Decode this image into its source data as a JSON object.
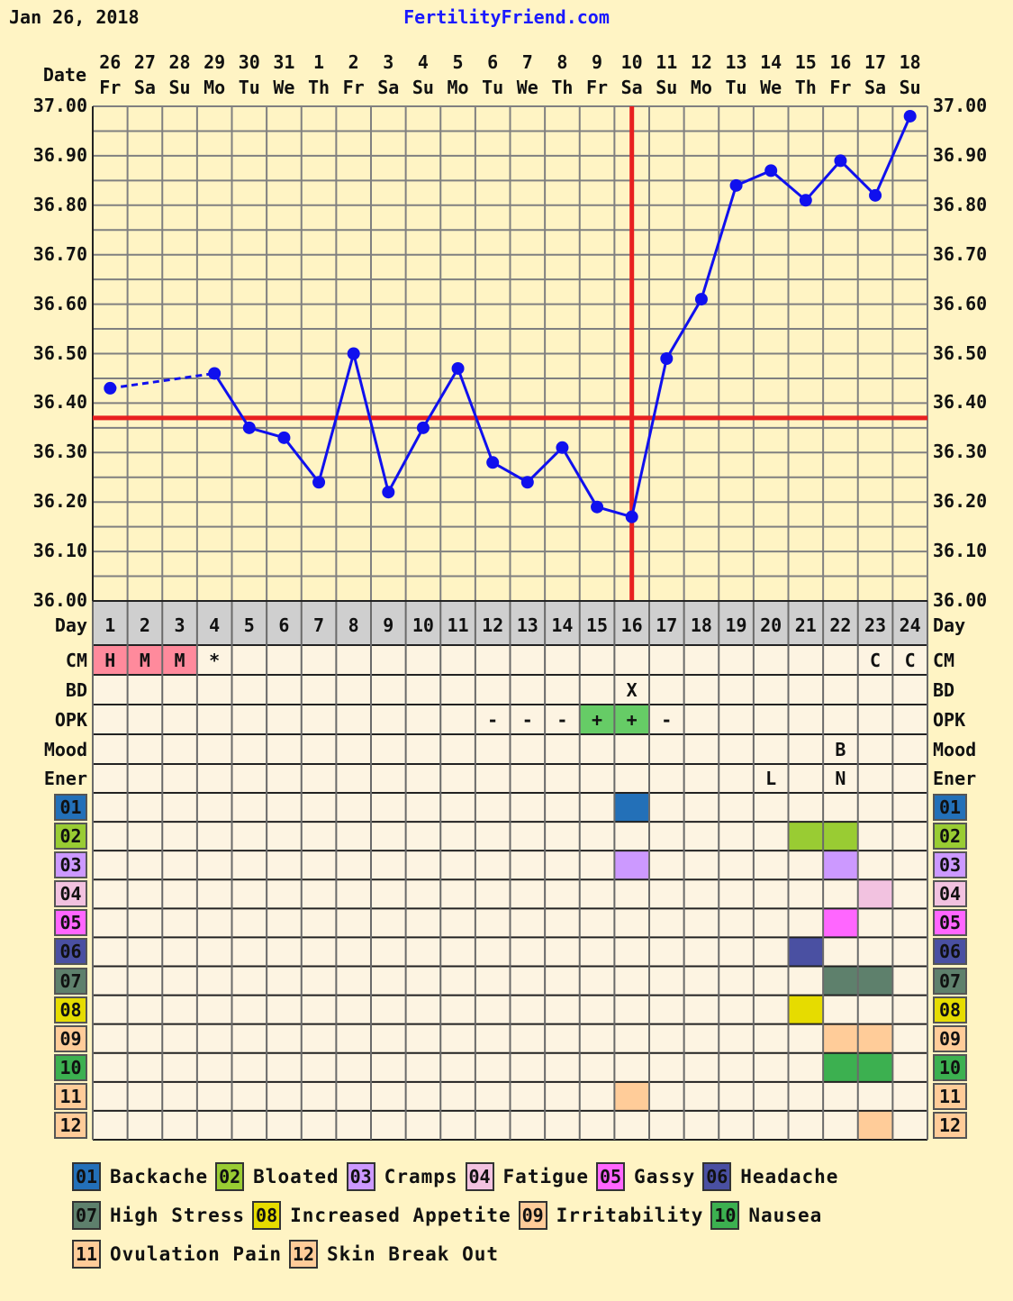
{
  "header": {
    "date": "Jan 26, 2018",
    "site": "FertilityFriend.com"
  },
  "labels": {
    "date": "Date",
    "day": "Day"
  },
  "chart_data": {
    "type": "line",
    "dates": [
      "26",
      "27",
      "28",
      "29",
      "30",
      "31",
      "1",
      "2",
      "3",
      "4",
      "5",
      "6",
      "7",
      "8",
      "9",
      "10",
      "11",
      "12",
      "13",
      "14",
      "15",
      "16",
      "17",
      "18"
    ],
    "weekdays": [
      "Fr",
      "Sa",
      "Su",
      "Mo",
      "Tu",
      "We",
      "Th",
      "Fr",
      "Sa",
      "Su",
      "Mo",
      "Tu",
      "We",
      "Th",
      "Fr",
      "Sa",
      "Su",
      "Mo",
      "Tu",
      "We",
      "Th",
      "Fr",
      "Sa",
      "Su"
    ],
    "cycle_days": [
      "1",
      "2",
      "3",
      "4",
      "5",
      "6",
      "7",
      "8",
      "9",
      "10",
      "11",
      "12",
      "13",
      "14",
      "15",
      "16",
      "17",
      "18",
      "19",
      "20",
      "21",
      "22",
      "23",
      "24"
    ],
    "temperatures": [
      36.43,
      null,
      null,
      36.46,
      36.35,
      36.33,
      36.24,
      36.5,
      36.22,
      36.35,
      36.47,
      36.28,
      36.24,
      36.31,
      36.19,
      36.17,
      36.49,
      36.61,
      36.84,
      36.87,
      36.81,
      36.89,
      36.82,
      36.98
    ],
    "y_ticks": [
      "37.00",
      "36.90",
      "36.80",
      "36.70",
      "36.60",
      "36.50",
      "36.40",
      "36.30",
      "36.20",
      "36.10",
      "36.00"
    ],
    "ylim": [
      36.0,
      37.0
    ],
    "coverline": 36.37,
    "ovulation_day": 16,
    "grid": true,
    "colors": {
      "line": "#1010ee",
      "coverline": "#e82020",
      "grid": "#808080",
      "background": "#fff4c4"
    }
  },
  "rows": [
    {
      "label": "CM",
      "values": [
        "H",
        "M",
        "M",
        "*",
        "",
        "",
        "",
        "",
        "",
        "",
        "",
        "",
        "",
        "",
        "",
        "",
        "",
        "",
        "",
        "",
        "",
        "",
        "C",
        "C"
      ],
      "highlight": {
        "H": "#ff8a9c",
        "M": "#ff8a9c"
      }
    },
    {
      "label": "BD",
      "values": [
        "",
        "",
        "",
        "",
        "",
        "",
        "",
        "",
        "",
        "",
        "",
        "",
        "",
        "",
        "",
        "X",
        "",
        "",
        "",
        "",
        "",
        "",
        "",
        ""
      ],
      "highlight": {}
    },
    {
      "label": "OPK",
      "values": [
        "",
        "",
        "",
        "",
        "",
        "",
        "",
        "",
        "",
        "",
        "",
        "-",
        "-",
        "-",
        "+",
        "+",
        "-",
        "",
        "",
        "",
        "",
        "",
        "",
        ""
      ],
      "highlight": {
        "+": "#66cc66"
      }
    },
    {
      "label": "Mood",
      "values": [
        "",
        "",
        "",
        "",
        "",
        "",
        "",
        "",
        "",
        "",
        "",
        "",
        "",
        "",
        "",
        "",
        "",
        "",
        "",
        "",
        "",
        "B",
        "",
        ""
      ],
      "highlight": {}
    },
    {
      "label": "Ener",
      "values": [
        "",
        "",
        "",
        "",
        "",
        "",
        "",
        "",
        "",
        "",
        "",
        "",
        "",
        "",
        "",
        "",
        "",
        "",
        "",
        "L",
        "",
        "N",
        "",
        ""
      ],
      "highlight": {}
    }
  ],
  "symptoms": [
    {
      "code": "01",
      "name": "Backache",
      "color": "#2370b8",
      "days": [
        16
      ]
    },
    {
      "code": "02",
      "name": "Bloated",
      "color": "#99cc33",
      "days": [
        21,
        22
      ]
    },
    {
      "code": "03",
      "name": "Cramps",
      "color": "#cc99ff",
      "days": [
        16,
        22
      ]
    },
    {
      "code": "04",
      "name": "Fatigue",
      "color": "#f2c2e0",
      "days": [
        23
      ]
    },
    {
      "code": "05",
      "name": "Gassy",
      "color": "#ff66ff",
      "days": [
        22
      ]
    },
    {
      "code": "06",
      "name": "Headache",
      "color": "#4a50a2",
      "days": [
        21
      ]
    },
    {
      "code": "07",
      "name": "High Stress",
      "color": "#5e806c",
      "days": [
        22,
        23
      ]
    },
    {
      "code": "08",
      "name": "Increased Appetite",
      "color": "#e6dc00",
      "days": [
        21
      ]
    },
    {
      "code": "09",
      "name": "Irritability",
      "color": "#ffcc99",
      "days": [
        22,
        23
      ]
    },
    {
      "code": "10",
      "name": "Nausea",
      "color": "#3cb050",
      "days": [
        22,
        23
      ]
    },
    {
      "code": "11",
      "name": "Ovulation Pain",
      "color": "#ffcc99",
      "days": [
        16
      ]
    },
    {
      "code": "12",
      "name": "Skin Break Out",
      "color": "#ffcc99",
      "days": [
        23
      ]
    }
  ]
}
